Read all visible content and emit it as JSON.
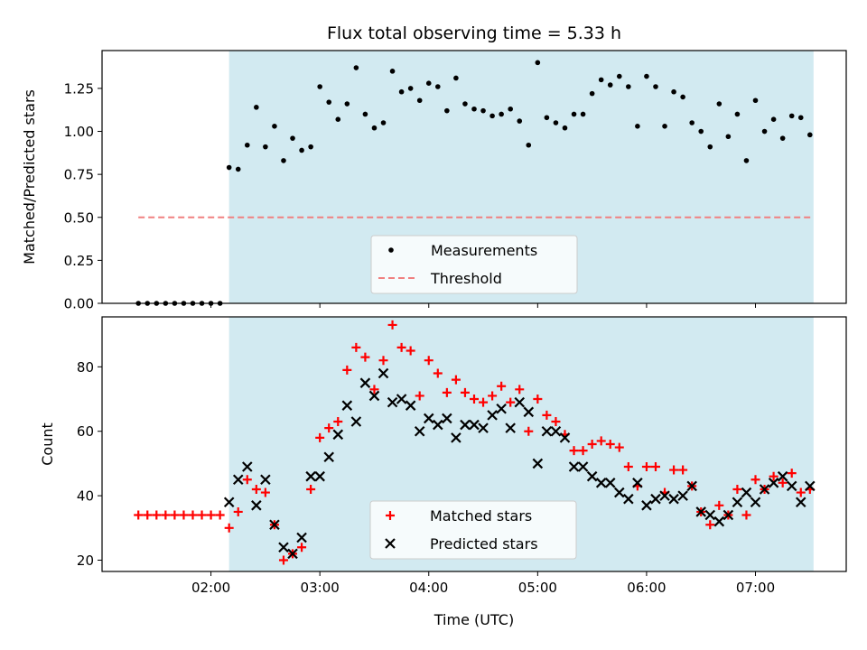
{
  "title": "Flux total observing time = 5.33 h",
  "xlabel": "Time (UTC)",
  "colors": {
    "span": "#add8e6",
    "threshold": "#f08080",
    "matched": "#ff0000",
    "predicted": "#000000",
    "measurement": "#000000"
  },
  "chart_data": [
    {
      "type": "scatter",
      "ylabel": "Matched/Predicted stars",
      "xlim": [
        "01:00",
        "07:50"
      ],
      "ylim": [
        0,
        1.47
      ],
      "yticks": [
        "0.00",
        "0.25",
        "0.50",
        "0.75",
        "1.00",
        "1.25"
      ],
      "xticks": [
        "02:00",
        "03:00",
        "04:00",
        "05:00",
        "06:00",
        "07:00"
      ],
      "xtick_labels_shown": false,
      "shaded_span": [
        "02:10",
        "07:32"
      ],
      "threshold": {
        "value": 0.5,
        "from": "01:20",
        "to": "07:32"
      },
      "legend": {
        "position": "lower-center",
        "entries": [
          "Measurements",
          "Threshold"
        ]
      },
      "series": [
        {
          "name": "Measurements",
          "x": [
            "01:20",
            "01:25",
            "01:30",
            "01:35",
            "01:40",
            "01:45",
            "01:50",
            "01:55",
            "02:00",
            "02:05",
            "02:10",
            "02:15",
            "02:20",
            "02:25",
            "02:30",
            "02:35",
            "02:40",
            "02:45",
            "02:50",
            "02:55",
            "03:00",
            "03:05",
            "03:10",
            "03:15",
            "03:20",
            "03:25",
            "03:30",
            "03:35",
            "03:40",
            "03:45",
            "03:50",
            "03:55",
            "04:00",
            "04:05",
            "04:10",
            "04:15",
            "04:20",
            "04:25",
            "04:30",
            "04:35",
            "04:40",
            "04:45",
            "04:50",
            "04:55",
            "05:00",
            "05:05",
            "05:10",
            "05:15",
            "05:20",
            "05:25",
            "05:30",
            "05:35",
            "05:40",
            "05:45",
            "05:50",
            "05:55",
            "06:00",
            "06:05",
            "06:10",
            "06:15",
            "06:20",
            "06:25",
            "06:30",
            "06:35",
            "06:40",
            "06:45",
            "06:50",
            "06:55",
            "07:00",
            "07:05",
            "07:10",
            "07:15",
            "07:20",
            "07:25",
            "07:30"
          ],
          "y": [
            0,
            0,
            0,
            0,
            0,
            0,
            0,
            0,
            0,
            0,
            0.79,
            0.78,
            0.92,
            1.14,
            0.91,
            1.03,
            0.83,
            0.96,
            0.89,
            0.91,
            1.26,
            1.17,
            1.07,
            1.16,
            1.37,
            1.1,
            1.02,
            1.05,
            1.35,
            1.23,
            1.25,
            1.18,
            1.28,
            1.26,
            1.12,
            1.31,
            1.16,
            1.13,
            1.12,
            1.09,
            1.1,
            1.13,
            1.06,
            0.92,
            1.4,
            1.08,
            1.05,
            1.02,
            1.1,
            1.1,
            1.22,
            1.3,
            1.27,
            1.32,
            1.26,
            1.03,
            1.32,
            1.26,
            1.03,
            1.23,
            1.2,
            1.05,
            1.0,
            0.91,
            1.16,
            0.97,
            1.1,
            0.83,
            1.18,
            1.0,
            1.07,
            0.96,
            1.09,
            1.08,
            0.98
          ]
        }
      ]
    },
    {
      "type": "scatter",
      "ylabel": "Count",
      "xlim": [
        "01:00",
        "07:50"
      ],
      "ylim": [
        16.5,
        95.5
      ],
      "yticks": [
        "20",
        "40",
        "60",
        "80"
      ],
      "xticks": [
        "02:00",
        "03:00",
        "04:00",
        "05:00",
        "06:00",
        "07:00"
      ],
      "shaded_span": [
        "02:10",
        "07:32"
      ],
      "legend": {
        "position": "lower-center",
        "entries": [
          "Matched stars",
          "Predicted stars"
        ]
      },
      "series": [
        {
          "name": "Matched stars",
          "x": [
            "01:20",
            "01:25",
            "01:30",
            "01:35",
            "01:40",
            "01:45",
            "01:50",
            "01:55",
            "02:00",
            "02:05",
            "02:10",
            "02:15",
            "02:20",
            "02:25",
            "02:30",
            "02:35",
            "02:40",
            "02:45",
            "02:50",
            "02:55",
            "03:00",
            "03:05",
            "03:10",
            "03:15",
            "03:20",
            "03:25",
            "03:30",
            "03:35",
            "03:40",
            "03:45",
            "03:50",
            "03:55",
            "04:00",
            "04:05",
            "04:10",
            "04:15",
            "04:20",
            "04:25",
            "04:30",
            "04:35",
            "04:40",
            "04:45",
            "04:50",
            "04:55",
            "05:00",
            "05:05",
            "05:10",
            "05:15",
            "05:20",
            "05:25",
            "05:30",
            "05:35",
            "05:40",
            "05:45",
            "05:50",
            "05:55",
            "06:00",
            "06:05",
            "06:10",
            "06:15",
            "06:20",
            "06:25",
            "06:30",
            "06:35",
            "06:40",
            "06:45",
            "06:50",
            "06:55",
            "07:00",
            "07:05",
            "07:10",
            "07:15",
            "07:20",
            "07:25",
            "07:30"
          ],
          "y": [
            34,
            34,
            34,
            34,
            34,
            34,
            34,
            34,
            34,
            34,
            30,
            35,
            45,
            42,
            41,
            31,
            20,
            22,
            24,
            42,
            58,
            61,
            63,
            79,
            86,
            83,
            73,
            82,
            93,
            86,
            85,
            71,
            82,
            78,
            72,
            76,
            72,
            70,
            69,
            71,
            74,
            69,
            73,
            60,
            70,
            65,
            63,
            59,
            54,
            54,
            56,
            57,
            56,
            55,
            49,
            43,
            49,
            49,
            41,
            48,
            48,
            43,
            35,
            31,
            37,
            34,
            42,
            34,
            45,
            42,
            46,
            44,
            47,
            41,
            42
          ]
        },
        {
          "name": "Predicted stars",
          "x": [
            "02:10",
            "02:15",
            "02:20",
            "02:25",
            "02:30",
            "02:35",
            "02:40",
            "02:45",
            "02:50",
            "02:55",
            "03:00",
            "03:05",
            "03:10",
            "03:15",
            "03:20",
            "03:25",
            "03:30",
            "03:35",
            "03:40",
            "03:45",
            "03:50",
            "03:55",
            "04:00",
            "04:05",
            "04:10",
            "04:15",
            "04:20",
            "04:25",
            "04:30",
            "04:35",
            "04:40",
            "04:45",
            "04:50",
            "04:55",
            "05:00",
            "05:05",
            "05:10",
            "05:15",
            "05:20",
            "05:25",
            "05:30",
            "05:35",
            "05:40",
            "05:45",
            "05:50",
            "05:55",
            "06:00",
            "06:05",
            "06:10",
            "06:15",
            "06:20",
            "06:25",
            "06:30",
            "06:35",
            "06:40",
            "06:45",
            "06:50",
            "06:55",
            "07:00",
            "07:05",
            "07:10",
            "07:15",
            "07:20",
            "07:25",
            "07:30"
          ],
          "y": [
            38,
            45,
            49,
            37,
            45,
            31,
            24,
            22,
            27,
            46,
            46,
            52,
            59,
            68,
            63,
            75,
            71,
            78,
            69,
            70,
            68,
            60,
            64,
            62,
            64,
            58,
            62,
            62,
            61,
            65,
            67,
            61,
            69,
            66,
            50,
            60,
            60,
            58,
            49,
            49,
            46,
            44,
            44,
            41,
            39,
            44,
            37,
            39,
            40,
            39,
            40,
            43,
            35,
            34,
            32,
            34,
            38,
            41,
            38,
            42,
            44,
            46,
            43,
            38,
            43
          ]
        }
      ]
    }
  ]
}
